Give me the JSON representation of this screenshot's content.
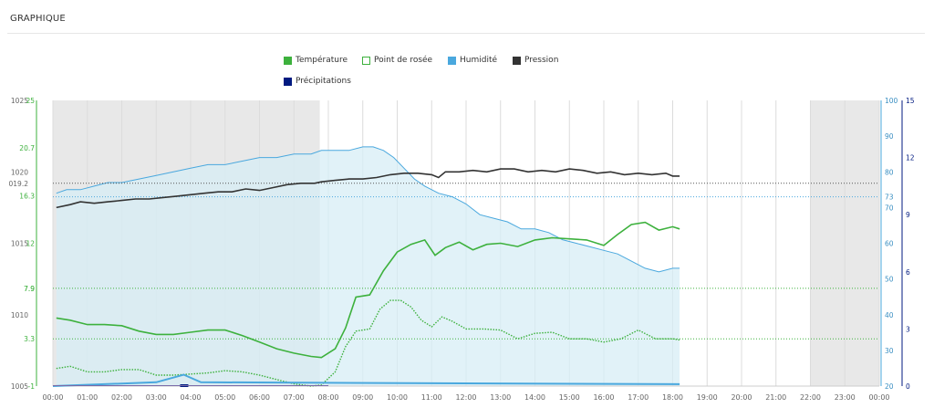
{
  "header": {
    "title": "GRAPHIQUE"
  },
  "colors": {
    "temperature": "#3db13d",
    "dew_point": "#3db13d",
    "humidity": "#4aa8de",
    "pressure": "#333333",
    "precipitation": "#001a80",
    "humidity_fill": "#d7edf6",
    "night_shade": "#e8e8e8",
    "grid": "#dcdcdc"
  },
  "legend": [
    {
      "key": "temperature",
      "label": "Température",
      "swatch": "filled",
      "color": "#3db13d"
    },
    {
      "key": "dew_point",
      "label": "Point de rosée",
      "swatch": "outline",
      "color": "#3db13d"
    },
    {
      "key": "humidity",
      "label": "Humidité",
      "swatch": "filled",
      "color": "#4aa8de"
    },
    {
      "key": "pressure",
      "label": "Pression",
      "swatch": "filled",
      "color": "#333333"
    },
    {
      "key": "precipitation",
      "label": "Précipitations",
      "swatch": "filled",
      "color": "#001a80"
    }
  ],
  "chart_data": {
    "type": "line",
    "x_unit": "hours",
    "xlim": [
      0,
      24
    ],
    "x_ticks": [
      "00:00",
      "01:00",
      "02:00",
      "03:00",
      "04:00",
      "05:00",
      "06:00",
      "07:00",
      "08:00",
      "09:00",
      "10:00",
      "11:00",
      "12:00",
      "13:00",
      "14:00",
      "15:00",
      "16:00",
      "17:00",
      "18:00",
      "19:00",
      "20:00",
      "21:00",
      "22:00",
      "23:00",
      "00:00"
    ],
    "night_periods": [
      [
        0,
        7.75
      ],
      [
        22,
        24
      ]
    ],
    "axes": {
      "pressure": {
        "side": "left",
        "range": [
          1005,
          1025
        ],
        "ticks": [
          "1005",
          "1010",
          "1015",
          "1020",
          "1025"
        ],
        "extra_labels": [
          "019.2"
        ]
      },
      "temperature": {
        "side": "left",
        "range": [
          -1,
          25
        ],
        "ticks": [
          "-1",
          "3.3",
          "7.9",
          "7.9",
          "12",
          "16.3",
          "20.7",
          "25"
        ]
      },
      "humidity": {
        "side": "right",
        "range": [
          20,
          100
        ],
        "ticks": [
          "20",
          "30",
          "40",
          "50",
          "60",
          "70",
          "73",
          "80",
          "90",
          "100"
        ]
      },
      "precipitation": {
        "side": "right",
        "range": [
          0,
          15
        ],
        "ticks": [
          "0",
          "3",
          "6",
          "9",
          "12",
          "15"
        ]
      }
    },
    "reference_lines": [
      {
        "series": "pressure",
        "value": 1019.2
      },
      {
        "series": "humidity",
        "value": 73
      },
      {
        "series": "temperature",
        "value": 7.9
      },
      {
        "series": "temperature",
        "value": 3.3
      }
    ],
    "series": [
      {
        "name": "Température",
        "key": "temperature",
        "x": [
          0.1,
          0.5,
          1.0,
          1.5,
          2.0,
          2.5,
          3.0,
          3.5,
          4.0,
          4.5,
          5.0,
          5.5,
          6.0,
          6.5,
          7.0,
          7.5,
          7.8,
          8.2,
          8.5,
          8.8,
          9.2,
          9.6,
          10.0,
          10.4,
          10.8,
          11.1,
          11.4,
          11.8,
          12.2,
          12.6,
          13.0,
          13.5,
          14.0,
          14.5,
          15.0,
          15.5,
          16.0,
          16.4,
          16.8,
          17.2,
          17.6,
          18.0,
          18.2
        ],
        "y": [
          5.2,
          5.0,
          4.6,
          4.6,
          4.5,
          4.0,
          3.7,
          3.7,
          3.9,
          4.1,
          4.1,
          3.6,
          3.0,
          2.4,
          2.0,
          1.7,
          1.6,
          2.4,
          4.3,
          7.1,
          7.3,
          9.5,
          11.2,
          11.9,
          12.3,
          10.9,
          11.6,
          12.1,
          11.4,
          11.9,
          12.0,
          11.7,
          12.3,
          12.5,
          12.4,
          12.3,
          11.8,
          12.8,
          13.7,
          13.9,
          13.2,
          13.5,
          13.3
        ]
      },
      {
        "name": "Point de rosée",
        "key": "dew_point",
        "x": [
          0.1,
          0.5,
          1.0,
          1.5,
          2.0,
          2.5,
          3.0,
          3.5,
          4.0,
          4.5,
          5.0,
          5.5,
          6.0,
          6.5,
          7.0,
          7.5,
          7.8,
          8.2,
          8.5,
          8.8,
          9.2,
          9.5,
          9.8,
          10.1,
          10.4,
          10.7,
          11.0,
          11.3,
          11.6,
          12.0,
          12.5,
          13.0,
          13.5,
          14.0,
          14.5,
          15.0,
          15.5,
          16.0,
          16.5,
          17.0,
          17.5,
          18.0,
          18.2
        ],
        "y": [
          0.6,
          0.8,
          0.3,
          0.3,
          0.5,
          0.5,
          0.0,
          0.0,
          0.1,
          0.2,
          0.4,
          0.3,
          0.0,
          -0.4,
          -0.8,
          -1.0,
          -0.9,
          0.3,
          2.6,
          4.0,
          4.2,
          6.0,
          6.8,
          6.8,
          6.2,
          5.0,
          4.4,
          5.3,
          4.9,
          4.2,
          4.2,
          4.1,
          3.3,
          3.8,
          3.9,
          3.3,
          3.3,
          3.0,
          3.3,
          4.1,
          3.3,
          3.3,
          3.2
        ]
      },
      {
        "name": "Humidité",
        "key": "humidity",
        "x": [
          0.1,
          0.4,
          0.8,
          1.2,
          1.6,
          2.0,
          2.5,
          3.0,
          3.5,
          4.0,
          4.5,
          5.0,
          5.5,
          6.0,
          6.5,
          7.0,
          7.5,
          7.8,
          8.2,
          8.6,
          9.0,
          9.3,
          9.6,
          9.9,
          10.2,
          10.5,
          10.8,
          11.2,
          11.6,
          12.0,
          12.4,
          12.8,
          13.2,
          13.6,
          14.0,
          14.4,
          14.8,
          15.2,
          15.6,
          16.0,
          16.4,
          16.8,
          17.2,
          17.6,
          18.0,
          18.2
        ],
        "y": [
          74,
          75,
          75,
          76,
          77,
          77,
          78,
          79,
          80,
          81,
          82,
          82,
          83,
          84,
          84,
          85,
          85,
          86,
          86,
          86,
          87,
          87,
          86,
          84,
          81,
          78,
          76,
          74,
          73,
          71,
          68,
          67,
          66,
          64,
          64,
          63,
          61,
          60,
          59,
          58,
          57,
          55,
          53,
          52,
          53,
          53
        ]
      },
      {
        "name": "Pression",
        "key": "pressure",
        "x": [
          0.1,
          0.5,
          0.8,
          1.2,
          1.6,
          2.0,
          2.4,
          2.8,
          3.2,
          3.6,
          4.0,
          4.4,
          4.8,
          5.2,
          5.6,
          6.0,
          6.4,
          6.8,
          7.2,
          7.6,
          7.8,
          8.2,
          8.6,
          9.0,
          9.4,
          9.8,
          10.2,
          10.6,
          11.0,
          11.2,
          11.4,
          11.8,
          12.2,
          12.6,
          13.0,
          13.4,
          13.8,
          14.2,
          14.6,
          15.0,
          15.4,
          15.8,
          16.2,
          16.6,
          17.0,
          17.4,
          17.8,
          18.0,
          18.2
        ],
        "y": [
          1017.5,
          1017.7,
          1017.9,
          1017.8,
          1017.9,
          1018.0,
          1018.1,
          1018.1,
          1018.2,
          1018.3,
          1018.4,
          1018.5,
          1018.6,
          1018.6,
          1018.8,
          1018.7,
          1018.9,
          1019.1,
          1019.2,
          1019.2,
          1019.3,
          1019.4,
          1019.5,
          1019.5,
          1019.6,
          1019.8,
          1019.9,
          1019.9,
          1019.8,
          1019.6,
          1020.0,
          1020.0,
          1020.1,
          1020.0,
          1020.2,
          1020.2,
          1020.0,
          1020.1,
          1020.0,
          1020.2,
          1020.1,
          1019.9,
          1020.0,
          1019.8,
          1019.9,
          1019.8,
          1019.9,
          1019.7,
          1019.7
        ]
      },
      {
        "name": "Précipitations",
        "key": "precipitation",
        "x": [
          0,
          3.0,
          3.8,
          4.3,
          18.2
        ],
        "y": [
          0,
          0.2,
          0.6,
          0.2,
          0.1
        ]
      }
    ]
  }
}
